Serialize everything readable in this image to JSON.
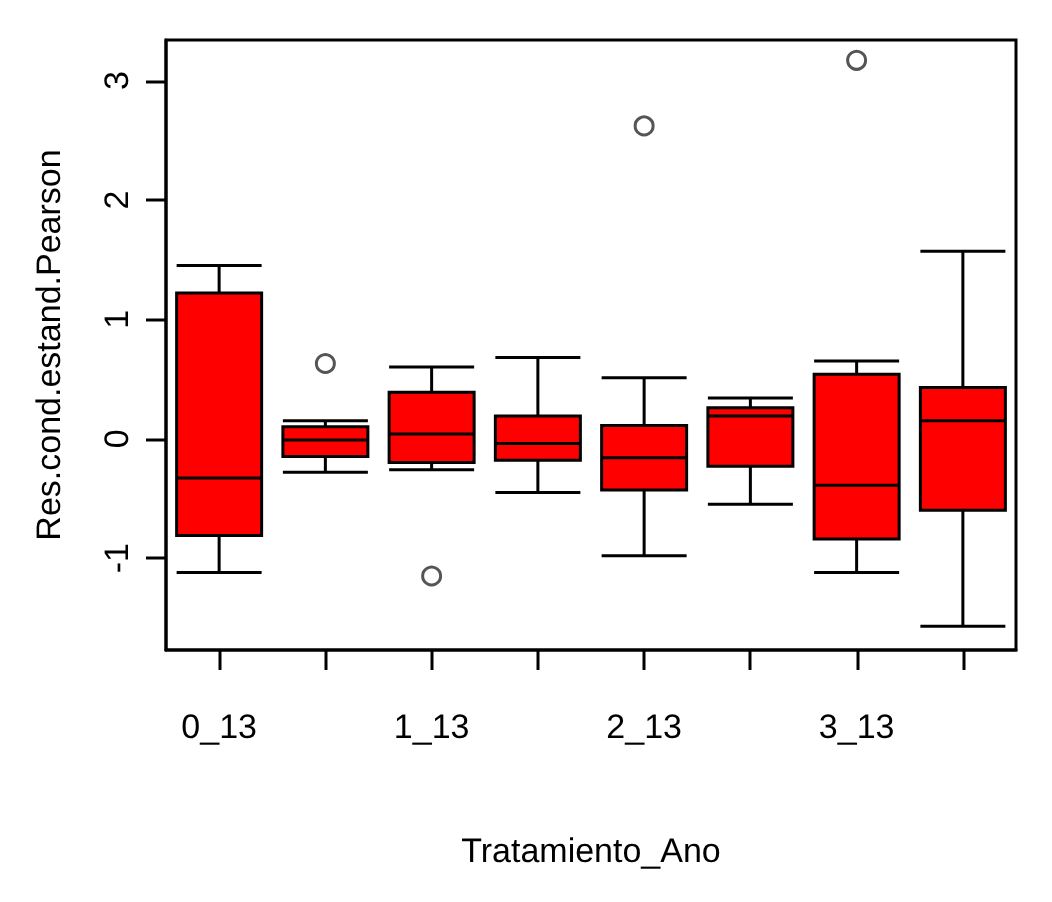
{
  "chart_data": {
    "type": "box",
    "xlabel": "Tratamiento_Ano",
    "ylabel": "Res.cond.estand.Pearson",
    "categories": [
      "0_13",
      null,
      "1_13",
      null,
      "2_13",
      null,
      "3_13",
      null
    ],
    "color": "#ff0000",
    "boxes": [
      {
        "low": -1.12,
        "q1": -0.81,
        "median": -0.33,
        "q3": 1.22,
        "high": 1.45
      },
      {
        "low": -0.28,
        "q1": -0.15,
        "median": -0.01,
        "q3": 0.1,
        "high": 0.15,
        "outliers": [
          0.63
        ]
      },
      {
        "low": -0.26,
        "q1": -0.2,
        "median": 0.04,
        "q3": 0.39,
        "high": 0.6,
        "outliers": [
          -1.15
        ]
      },
      {
        "low": -0.45,
        "q1": -0.18,
        "median": -0.04,
        "q3": 0.19,
        "high": 0.68
      },
      {
        "low": -0.98,
        "q1": -0.43,
        "median": -0.16,
        "q3": 0.11,
        "high": 0.51,
        "outliers": [
          2.62
        ]
      },
      {
        "low": -0.55,
        "q1": -0.23,
        "median": 0.19,
        "q3": 0.26,
        "high": 0.34
      },
      {
        "low": -1.12,
        "q1": -0.84,
        "median": -0.39,
        "q3": 0.54,
        "high": 0.65,
        "outliers": [
          3.17
        ]
      },
      {
        "low": -1.57,
        "q1": -0.6,
        "median": 0.15,
        "q3": 0.43,
        "high": 1.57
      }
    ],
    "ylim": [
      -1.77,
      3.34
    ],
    "yticks": [
      -1,
      0,
      1,
      2,
      3
    ],
    "grid": false
  }
}
